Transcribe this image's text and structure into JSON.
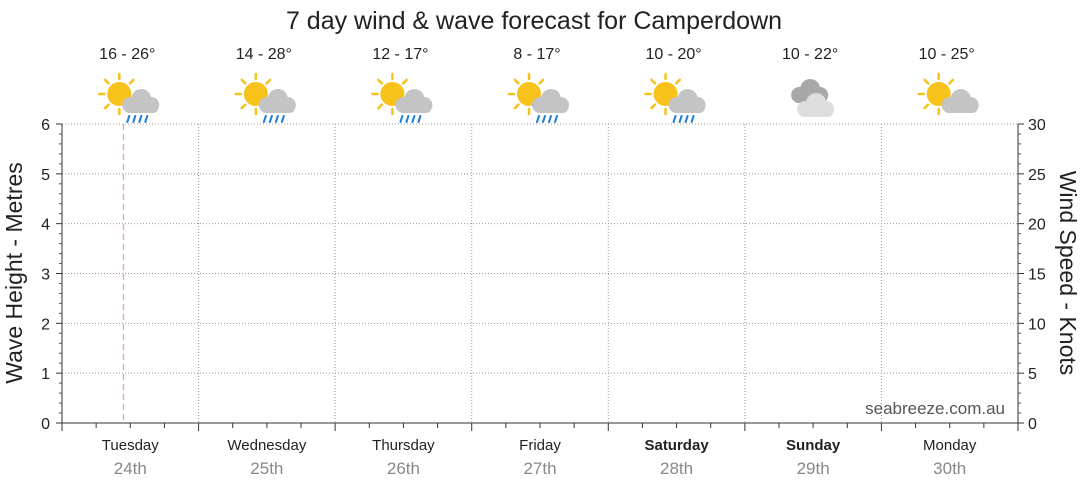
{
  "chart_data": {
    "type": "line",
    "title": "7 day wind & wave forecast for Camperdown",
    "y_left_label": "Wave Height - Metres",
    "y_right_label": "Wind Speed - Knots",
    "y_left_range": [
      0,
      6
    ],
    "y_right_range": [
      0,
      30
    ],
    "y_left_ticks": [
      "0",
      "1",
      "2",
      "3",
      "4",
      "5",
      "6"
    ],
    "y_right_ticks": [
      "0",
      "5",
      "10",
      "15",
      "20",
      "25",
      "30"
    ],
    "grid": true,
    "current_time_marker_fraction": 0.45,
    "watermark": "seabreeze.com.au",
    "days": [
      {
        "name": "Tuesday",
        "date": "24th",
        "temp": "16 - 26°",
        "icon": "sun-cloud-rain-icon",
        "bold": false
      },
      {
        "name": "Wednesday",
        "date": "25th",
        "temp": "14 - 28°",
        "icon": "sun-cloud-rain-icon",
        "bold": false
      },
      {
        "name": "Thursday",
        "date": "26th",
        "temp": "12 - 17°",
        "icon": "sun-cloud-rain-icon",
        "bold": false
      },
      {
        "name": "Friday",
        "date": "27th",
        "temp": "8 - 17°",
        "icon": "sun-cloud-rain-icon",
        "bold": false
      },
      {
        "name": "Saturday",
        "date": "28th",
        "temp": "10 - 20°",
        "icon": "sun-cloud-rain-icon",
        "bold": true
      },
      {
        "name": "Sunday",
        "date": "29th",
        "temp": "10 - 22°",
        "icon": "cloudy-icon",
        "bold": true
      },
      {
        "name": "Monday",
        "date": "30th",
        "temp": "10 - 25°",
        "icon": "sun-cloud-icon",
        "bold": false
      }
    ],
    "series": []
  },
  "colors": {
    "sun": "#f7c21a",
    "cloud": "#c4c4c4",
    "rain": "#1e7fd8",
    "marker": "#f0a58a",
    "grid": "#9a9a9a"
  }
}
